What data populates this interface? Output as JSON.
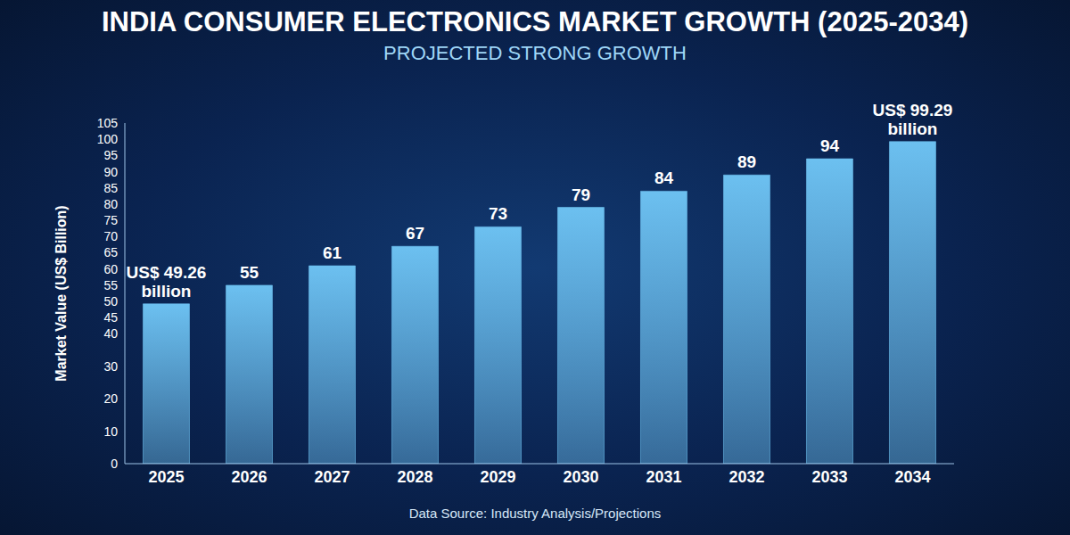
{
  "chart_data": {
    "type": "bar",
    "title": "INDIA CONSUMER ELECTRONICS MARKET GROWTH (2025-2034)",
    "subtitle": "PROJECTED STRONG GROWTH",
    "y_label": "Market Value (US$ Billion)",
    "source": "Data Source: Industry Analysis/Projections",
    "categories": [
      "2025",
      "2026",
      "2027",
      "2028",
      "2029",
      "2030",
      "2031",
      "2032",
      "2033",
      "2034"
    ],
    "values": [
      49.26,
      55,
      61,
      67,
      73,
      79,
      84,
      89,
      94,
      99.29
    ],
    "value_labels": [
      "US$ 49.26 billion",
      "55",
      "61",
      "67",
      "73",
      "79",
      "84",
      "89",
      "94",
      "US$ 99.29 billion"
    ],
    "color": "#6cc0f0",
    "ylim": [
      0,
      105
    ],
    "yticks": [
      0,
      10,
      20,
      30,
      40,
      45,
      50,
      55,
      60,
      65,
      70,
      75,
      80,
      85,
      90,
      95,
      100,
      105
    ],
    "grid": false,
    "data_labels": true
  }
}
